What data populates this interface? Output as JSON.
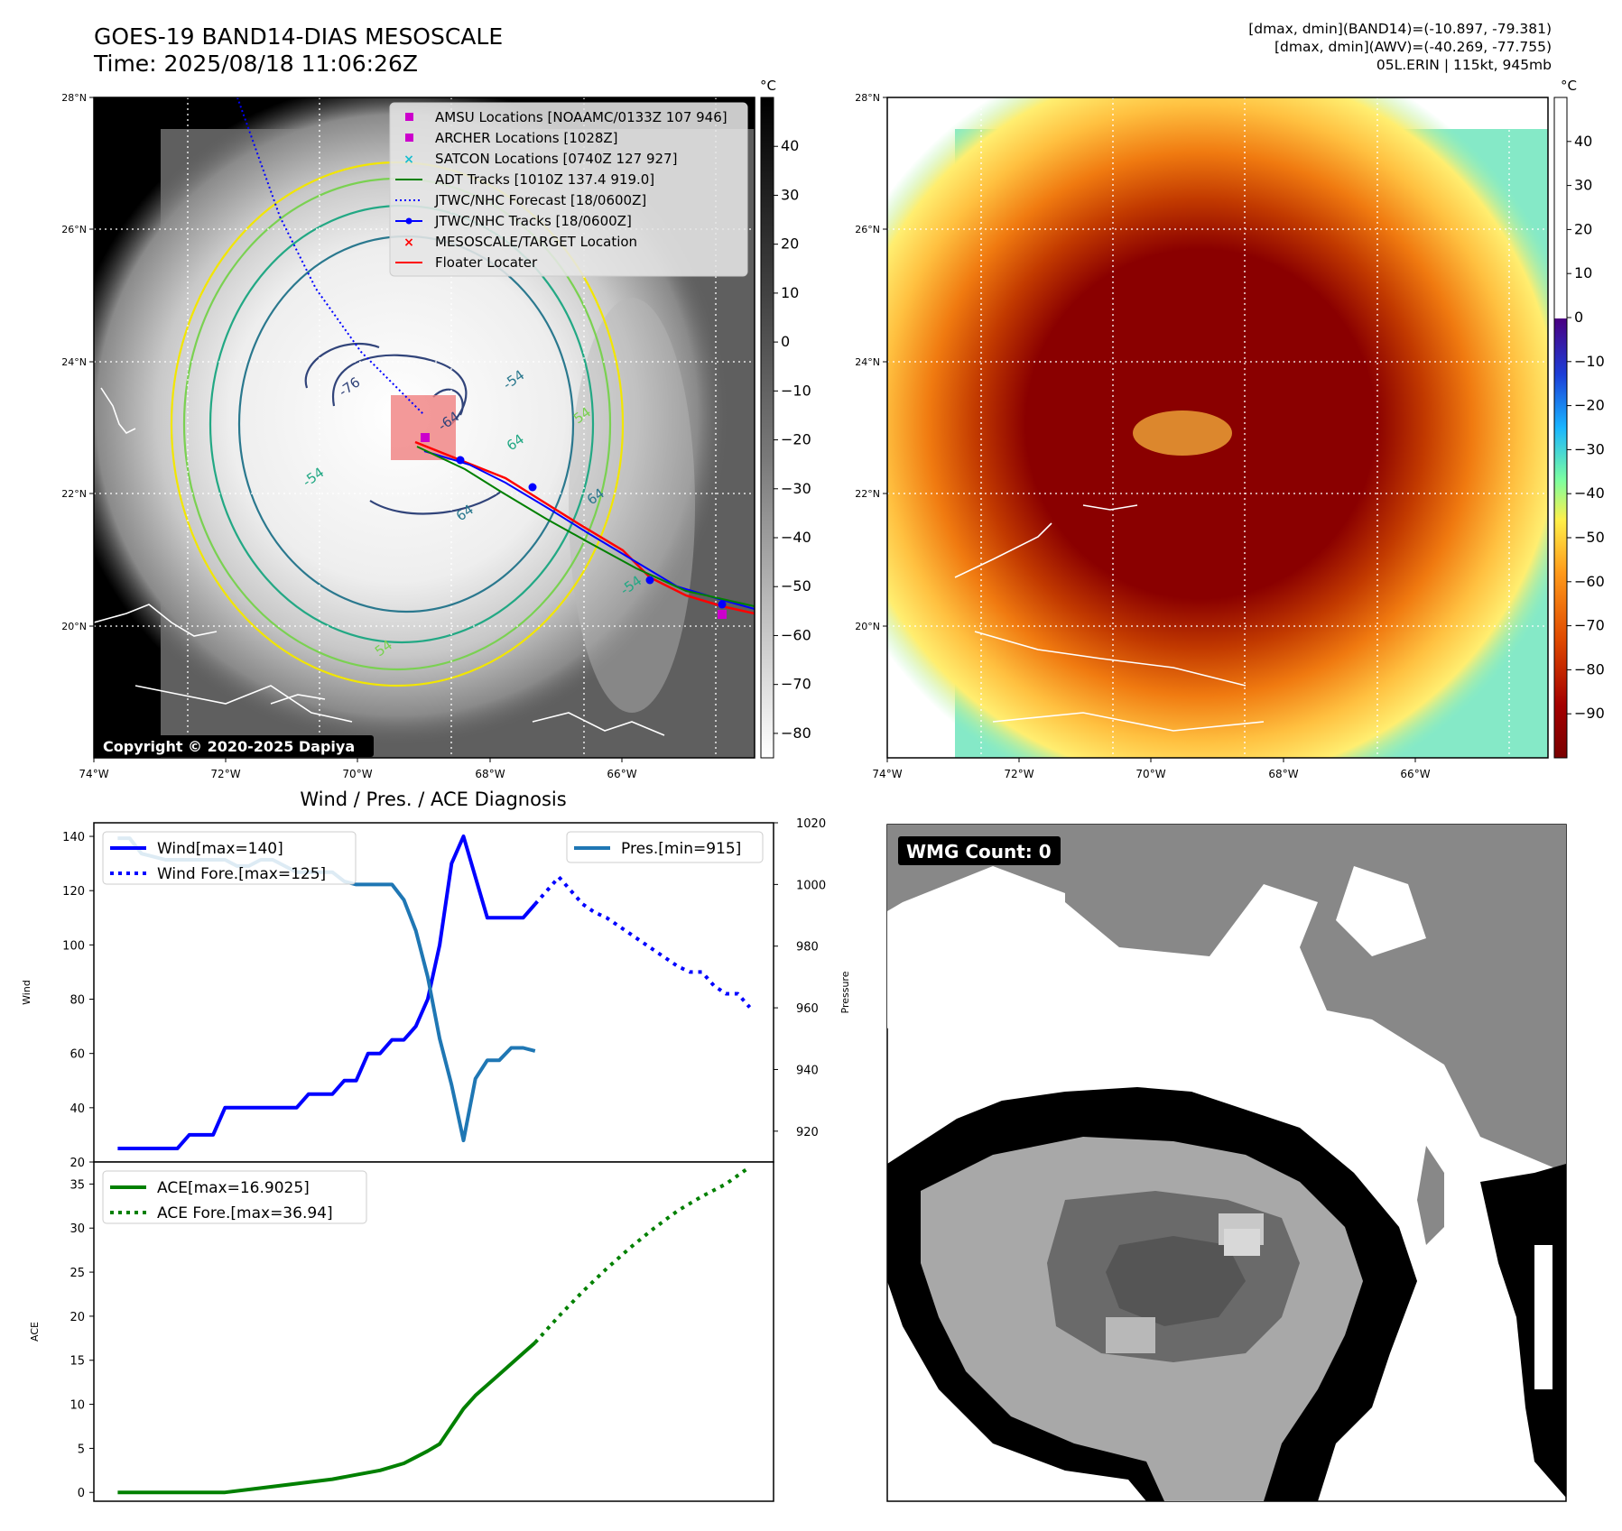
{
  "header": {
    "title": "GOES-19 BAND14-DIAS MESOSCALE",
    "time": "Time: 2025/08/18 11:06:26Z",
    "dmax_band14": "[dmax, dmin](BAND14)=(-10.897, -79.381)",
    "dmax_awv": "[dmax, dmin](AWV)=(-40.269, -77.755)",
    "storm": "05L.ERIN | 115kt, 945mb"
  },
  "map": {
    "lat_ticks": [
      "28°N",
      "26°N",
      "24°N",
      "22°N",
      "20°N"
    ],
    "lon_ticks": [
      "74°W",
      "72°W",
      "70°W",
      "68°W",
      "66°W"
    ],
    "copyright": "Copyright © 2020-2025 Dapiya",
    "contour_labels": [
      "-76",
      "-54",
      "64",
      "-64",
      "64",
      "54",
      "-54",
      "54",
      "64",
      "-54"
    ],
    "legend": [
      {
        "label": "AMSU Locations [NOAAMC/0133Z 107 946]",
        "marker": "square",
        "color": "#cc00cc"
      },
      {
        "label": "ARCHER Locations [1028Z]",
        "marker": "square",
        "color": "#cc00cc"
      },
      {
        "label": "SATCON Locations [0740Z 127 927]",
        "marker": "x",
        "color": "#17becf"
      },
      {
        "label": "ADT Tracks [1010Z 137.4 919.0]",
        "marker": "line",
        "color": "#008000"
      },
      {
        "label": "JTWC/NHC Forecast [18/0600Z]",
        "marker": "dotted",
        "color": "#0000ff"
      },
      {
        "label": "JTWC/NHC Tracks [18/0600Z]",
        "marker": "line-dot",
        "color": "#0000ff"
      },
      {
        "label": "MESOSCALE/TARGET Location",
        "marker": "x",
        "color": "#ff0000"
      },
      {
        "label": "Floater Locater",
        "marker": "line",
        "color": "#ff0000"
      }
    ]
  },
  "colorbar_gray": {
    "unit": "°C",
    "ticks": [
      "40",
      "30",
      "20",
      "10",
      "0",
      "−10",
      "−20",
      "−30",
      "−40",
      "−50",
      "−60",
      "−70",
      "−80"
    ]
  },
  "colorbar_awv": {
    "unit": "°C",
    "ticks": [
      "40",
      "30",
      "20",
      "10",
      "0",
      "−10",
      "−20",
      "−30",
      "−40",
      "−50",
      "−60",
      "−70",
      "−80",
      "−90"
    ]
  },
  "wmg": {
    "label": "WMG Count: 0"
  },
  "colors": {
    "wind": "#0000ff",
    "pressure": "#1f77b4",
    "ace": "#008000"
  },
  "chart_data": [
    {
      "type": "line",
      "title": "Wind / Pres. / ACE Diagnosis",
      "ylabel": "Wind",
      "y2label": "Pressure",
      "ylim": [
        20,
        145
      ],
      "y2lim": [
        910,
        1020
      ],
      "yticks": [
        "140",
        "120",
        "100",
        "80",
        "60",
        "40",
        "20"
      ],
      "y2ticks": [
        "1020",
        "1000",
        "980",
        "960",
        "940",
        "920"
      ],
      "series": [
        {
          "name": "Wind[max=140]",
          "style": "solid",
          "values": [
            [
              0,
              25
            ],
            [
              1,
              25
            ],
            [
              2,
              25
            ],
            [
              3,
              25
            ],
            [
              4,
              25
            ],
            [
              5,
              25
            ],
            [
              6,
              30
            ],
            [
              7,
              30
            ],
            [
              8,
              30
            ],
            [
              9,
              40
            ],
            [
              10,
              40
            ],
            [
              11,
              40
            ],
            [
              12,
              40
            ],
            [
              13,
              40
            ],
            [
              14,
              40
            ],
            [
              15,
              40
            ],
            [
              16,
              45
            ],
            [
              17,
              45
            ],
            [
              18,
              45
            ],
            [
              19,
              50
            ],
            [
              20,
              50
            ],
            [
              21,
              60
            ],
            [
              22,
              60
            ],
            [
              23,
              65
            ],
            [
              24,
              65
            ],
            [
              25,
              70
            ],
            [
              26,
              80
            ],
            [
              27,
              100
            ],
            [
              28,
              130
            ],
            [
              29,
              140
            ],
            [
              30,
              125
            ],
            [
              31,
              110
            ],
            [
              32,
              110
            ],
            [
              33,
              110
            ],
            [
              34,
              110
            ],
            [
              35,
              115
            ]
          ]
        },
        {
          "name": "Wind Fore.[max=125]",
          "style": "dotted",
          "values": [
            [
              35,
              115
            ],
            [
              36,
              120
            ],
            [
              37,
              125
            ],
            [
              38,
              120
            ],
            [
              39,
              115
            ],
            [
              40,
              112
            ],
            [
              41,
              110
            ],
            [
              42,
              107
            ],
            [
              43,
              104
            ],
            [
              44,
              101
            ],
            [
              45,
              98
            ],
            [
              46,
              95
            ],
            [
              47,
              92
            ],
            [
              48,
              90
            ],
            [
              49,
              90
            ],
            [
              50,
              85
            ],
            [
              51,
              82
            ],
            [
              52,
              82
            ],
            [
              53,
              77
            ]
          ]
        },
        {
          "name": "Pres.[min=915]",
          "axis": "right",
          "style": "solid",
          "values": [
            [
              0,
              1015
            ],
            [
              1,
              1015
            ],
            [
              2,
              1010
            ],
            [
              3,
              1009
            ],
            [
              4,
              1008
            ],
            [
              5,
              1008
            ],
            [
              6,
              1008
            ],
            [
              7,
              1008
            ],
            [
              8,
              1008
            ],
            [
              9,
              1008
            ],
            [
              10,
              1006
            ],
            [
              11,
              1006
            ],
            [
              12,
              1008
            ],
            [
              13,
              1008
            ],
            [
              14,
              1006
            ],
            [
              15,
              1004
            ],
            [
              16,
              1004
            ],
            [
              17,
              1004
            ],
            [
              18,
              1004
            ],
            [
              19,
              1001
            ],
            [
              20,
              1000
            ],
            [
              21,
              1000
            ],
            [
              22,
              1000
            ],
            [
              23,
              1000
            ],
            [
              24,
              995
            ],
            [
              25,
              985
            ],
            [
              26,
              970
            ],
            [
              27,
              950
            ],
            [
              28,
              935
            ],
            [
              29,
              917
            ],
            [
              30,
              937
            ],
            [
              31,
              943
            ],
            [
              32,
              943
            ],
            [
              33,
              947
            ],
            [
              34,
              947
            ],
            [
              35,
              946
            ]
          ]
        }
      ]
    },
    {
      "type": "line",
      "ylabel": "ACE",
      "ylim": [
        -1,
        37.5
      ],
      "yticks": [
        "35",
        "30",
        "25",
        "20",
        "15",
        "10",
        "5",
        "0"
      ],
      "series": [
        {
          "name": "ACE[max=16.9025]",
          "style": "solid",
          "values": [
            [
              0,
              0
            ],
            [
              3,
              0
            ],
            [
              6,
              0
            ],
            [
              9,
              0
            ],
            [
              12,
              0.5
            ],
            [
              15,
              1
            ],
            [
              18,
              1.5
            ],
            [
              20,
              2
            ],
            [
              22,
              2.5
            ],
            [
              24,
              3.3
            ],
            [
              25,
              4
            ],
            [
              26,
              4.7
            ],
            [
              27,
              5.5
            ],
            [
              28,
              7.5
            ],
            [
              29,
              9.5
            ],
            [
              30,
              11
            ],
            [
              31,
              12.2
            ],
            [
              32,
              13.4
            ],
            [
              33,
              14.6
            ],
            [
              34,
              15.8
            ],
            [
              35,
              17
            ]
          ]
        },
        {
          "name": "ACE Fore.[max=36.94]",
          "style": "dotted",
          "values": [
            [
              35,
              17
            ],
            [
              37,
              20
            ],
            [
              39,
              22.8
            ],
            [
              41,
              25.4
            ],
            [
              43,
              27.8
            ],
            [
              45,
              30
            ],
            [
              47,
              32
            ],
            [
              49,
              33.6
            ],
            [
              51,
              35
            ],
            [
              53,
              36.94
            ]
          ]
        }
      ]
    }
  ]
}
